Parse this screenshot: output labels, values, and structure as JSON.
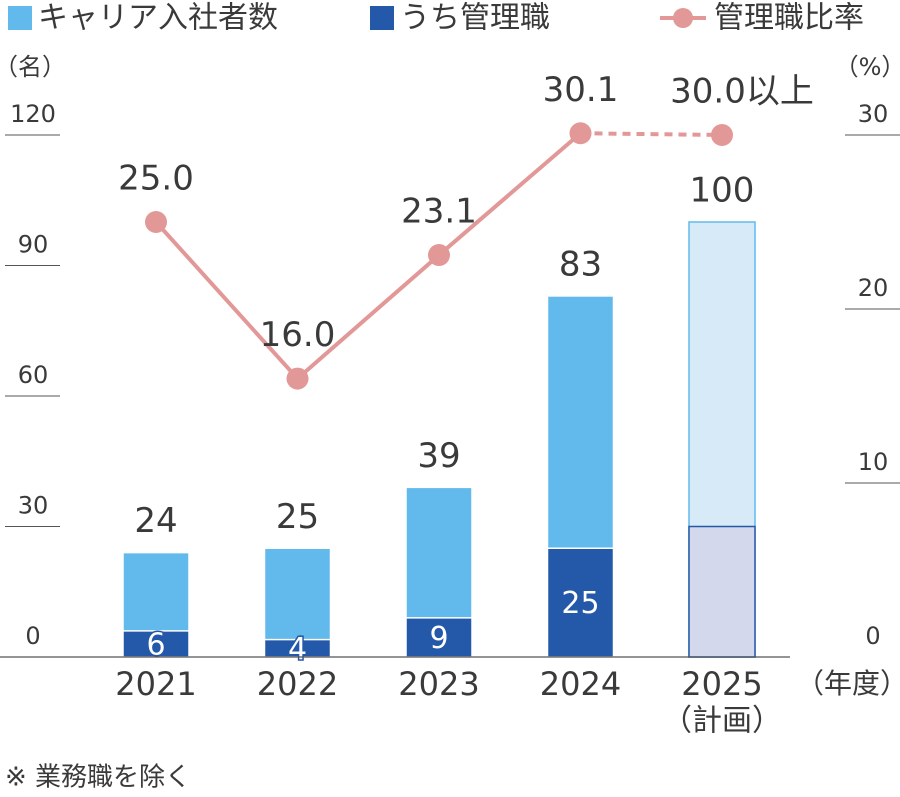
{
  "chart_data": {
    "type": "bar-line",
    "categories": [
      "2021",
      "2022",
      "2023",
      "2024",
      "2025"
    ],
    "category_note": "（計画）",
    "projected_index": 4,
    "series": [
      {
        "name": "キャリア入社者数",
        "color": "#62b9ec",
        "projected_color": "#d7eaf8",
        "values": [
          24,
          25,
          39,
          83,
          100
        ]
      },
      {
        "name": "うち管理職",
        "color": "#2458a8",
        "projected_color": "#d4d8ec",
        "values": [
          6,
          4,
          9,
          25,
          30
        ],
        "value_labels": [
          "6",
          "4",
          "9",
          "25",
          null
        ]
      },
      {
        "name": "管理職比率",
        "type": "line",
        "axis": "y2",
        "color": "#e39898",
        "values": [
          25.0,
          16.0,
          23.1,
          30.1,
          30.0
        ],
        "value_labels": [
          "25.0",
          "16.0",
          "23.1",
          "30.1",
          "30.0以上"
        ]
      }
    ],
    "ylabel": "（名）",
    "y2label": "（%）",
    "xlabel": "（年度）",
    "ylim": [
      0,
      120
    ],
    "yticks": [
      0,
      30,
      60,
      90,
      120
    ],
    "y2lim": [
      0,
      30
    ],
    "y2ticks": [
      0,
      10,
      20,
      30
    ],
    "footnote": "※ 業務職を除く"
  }
}
